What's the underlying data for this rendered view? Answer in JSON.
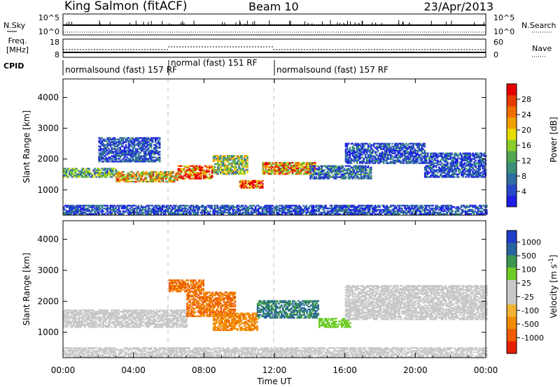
{
  "header": {
    "station": "King Salmon (fitACF)",
    "beam": "Beam 10",
    "date": "23/Apr/2013"
  },
  "nsky_panel": {
    "left_label": "N.Sky",
    "left_ticks": [
      "10^5",
      "10^0"
    ],
    "right_label": "N.Search",
    "right_ticks": [
      "10^5",
      "10^0"
    ]
  },
  "freq_panel": {
    "left_label_top": "Freq.",
    "left_label_unit": "[MHz]",
    "left_ticks": [
      "18",
      "8"
    ],
    "right_label": "Nave",
    "right_ticks": [
      "60",
      "0"
    ]
  },
  "cpid": {
    "label": "CPID",
    "segments": [
      {
        "start": 0,
        "end": 6,
        "text": "normalsound (fast) 157 RF"
      },
      {
        "start": 6,
        "end": 12,
        "text": "normal (fast) 151 RF"
      },
      {
        "start": 12,
        "end": 24,
        "text": "normalsound (fast) 157 RF"
      }
    ]
  },
  "chart_data": [
    {
      "type": "heatmap",
      "name": "power",
      "ylabel": "Slant Range [km]",
      "ylim": [
        180,
        4600
      ],
      "y_ticks": [
        "1000",
        "2000",
        "3000",
        "4000"
      ],
      "xlim": [
        0,
        24
      ],
      "colorbar": {
        "label": "Power [dB]",
        "tick_labels": [
          "4",
          "8",
          "12",
          "16",
          "20",
          "24",
          "28"
        ],
        "colors": [
          "#1e1ee6",
          "#2846c8",
          "#2f6fa3",
          "#3c8f78",
          "#52a852",
          "#8ccd28",
          "#e6dc00",
          "#f0a000",
          "#f06e00",
          "#e63c00",
          "#e60000"
        ]
      },
      "bands": [
        {
          "t0": 0,
          "t1": 3.0,
          "r0": 1400,
          "r1": 1700,
          "value": 12
        },
        {
          "t0": 3.0,
          "t1": 6.5,
          "r0": 1250,
          "r1": 1600,
          "value": 18
        },
        {
          "t0": 6.5,
          "t1": 8.5,
          "r0": 1350,
          "r1": 1800,
          "value": 24
        },
        {
          "t0": 8.5,
          "t1": 10.5,
          "r0": 1500,
          "r1": 2100,
          "value": 14
        },
        {
          "t0": 10.0,
          "t1": 11.3,
          "r0": 1050,
          "r1": 1300,
          "value": 26
        },
        {
          "t0": 11.3,
          "t1": 14.3,
          "r0": 1500,
          "r1": 1900,
          "value": 20
        },
        {
          "t0": 14.0,
          "t1": 17.5,
          "r0": 1350,
          "r1": 1800,
          "value": 8
        },
        {
          "t0": 16.0,
          "t1": 20.5,
          "r0": 1850,
          "r1": 2500,
          "value": 6
        },
        {
          "t0": 20.5,
          "t1": 24,
          "r0": 1400,
          "r1": 2200,
          "value": 6
        },
        {
          "t0": 2.0,
          "t1": 5.5,
          "r0": 1900,
          "r1": 2700,
          "value": 6
        },
        {
          "t0": 0,
          "t1": 24,
          "r0": 200,
          "r1": 500,
          "value": 6
        }
      ]
    },
    {
      "type": "heatmap",
      "name": "velocity",
      "ylabel": "Slant Range [km]",
      "ylim": [
        180,
        4600
      ],
      "y_ticks": [
        "1000",
        "2000",
        "3000",
        "4000"
      ],
      "xlim": [
        0,
        24
      ],
      "xlabel": "Time UT",
      "x_ticks": [
        "00:00",
        "04:00",
        "08:00",
        "12:00",
        "16:00",
        "20:00",
        "00:00"
      ],
      "colorbar": {
        "label": "Velocity [m s^-1]",
        "tick_labels": [
          "1000",
          "500",
          "100",
          "25",
          "-25",
          "-100",
          "-500",
          "-1000"
        ],
        "colors": [
          "#1e3cc8",
          "#2864a0",
          "#3c9650",
          "#6ecc28",
          "#c8c8c8",
          "#c8c8c8",
          "#f0b432",
          "#f08c00",
          "#f05a00",
          "#e61e00"
        ]
      },
      "bands": [
        {
          "t0": 0,
          "t1": 7.0,
          "r0": 1150,
          "r1": 1700,
          "value": 0
        },
        {
          "t0": 7.0,
          "t1": 9.8,
          "r0": 1500,
          "r1": 2300,
          "value": -300
        },
        {
          "t0": 8.5,
          "t1": 11.0,
          "r0": 1050,
          "r1": 1600,
          "value": -250
        },
        {
          "t0": 11.0,
          "t1": 14.5,
          "r0": 1450,
          "r1": 2000,
          "value": 300
        },
        {
          "t0": 14.5,
          "t1": 16.3,
          "r0": 1150,
          "r1": 1450,
          "value": 60
        },
        {
          "t0": 16.0,
          "t1": 24,
          "r0": 1400,
          "r1": 2500,
          "value": 0
        },
        {
          "t0": 6.0,
          "t1": 8.0,
          "r0": 2300,
          "r1": 2700,
          "value": -300
        },
        {
          "t0": 0,
          "t1": 24,
          "r0": 200,
          "r1": 500,
          "value": 0
        }
      ]
    }
  ]
}
